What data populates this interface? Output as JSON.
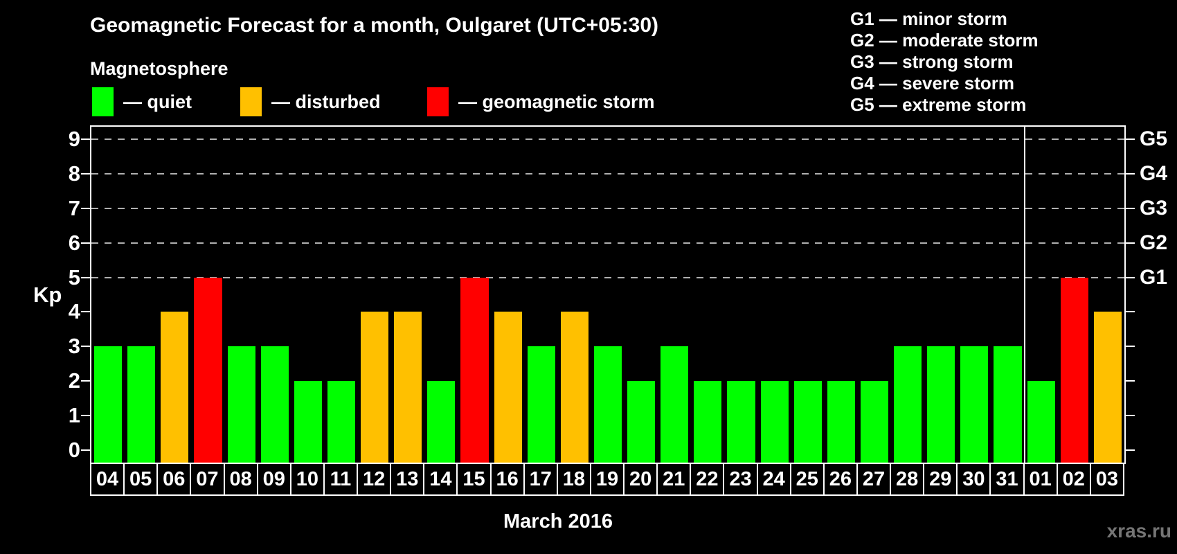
{
  "title": "Geomagnetic Forecast for a month, Oulgaret (UTC+05:30)",
  "subtitle": "Magnetosphere",
  "legend": {
    "items": [
      {
        "key": "quiet",
        "label": "— quiet",
        "color": "#00ff00"
      },
      {
        "key": "disturbed",
        "label": "— disturbed",
        "color": "#ffc000"
      },
      {
        "key": "storm",
        "label": "— geomagnetic storm",
        "color": "#ff0000"
      }
    ]
  },
  "g_scale_legend": [
    "G1 — minor storm",
    "G2 — moderate storm",
    "G3 — strong storm",
    "G4 — severe storm",
    "G5 — extreme storm"
  ],
  "watermark": "xras.ru",
  "chart_data": {
    "type": "bar",
    "title": "Geomagnetic Forecast for a month, Oulgaret (UTC+05:30)",
    "xlabel": "March 2016",
    "ylabel": "Kp",
    "ylim": [
      0,
      9
    ],
    "yticks": [
      0,
      1,
      2,
      3,
      4,
      5,
      6,
      7,
      8,
      9
    ],
    "gridlines_at_kp": [
      5,
      6,
      7,
      8,
      9
    ],
    "grid": "dashed",
    "legend_position": "top-left",
    "right_axis": [
      {
        "kp": 5,
        "label": "G1"
      },
      {
        "kp": 6,
        "label": "G2"
      },
      {
        "kp": 7,
        "label": "G3"
      },
      {
        "kp": 8,
        "label": "G4"
      },
      {
        "kp": 9,
        "label": "G5"
      }
    ],
    "categories": [
      "04",
      "05",
      "06",
      "07",
      "08",
      "09",
      "10",
      "11",
      "12",
      "13",
      "14",
      "15",
      "16",
      "17",
      "18",
      "19",
      "20",
      "21",
      "22",
      "23",
      "24",
      "25",
      "26",
      "27",
      "28",
      "29",
      "30",
      "31",
      "01",
      "02",
      "03"
    ],
    "values": [
      3,
      3,
      4,
      5,
      3,
      3,
      2,
      2,
      4,
      4,
      2,
      5,
      4,
      3,
      4,
      3,
      2,
      3,
      2,
      2,
      2,
      2,
      2,
      2,
      3,
      3,
      3,
      3,
      2,
      5,
      4
    ],
    "statuses": [
      "quiet",
      "quiet",
      "disturbed",
      "storm",
      "quiet",
      "quiet",
      "quiet",
      "quiet",
      "disturbed",
      "disturbed",
      "quiet",
      "storm",
      "disturbed",
      "quiet",
      "disturbed",
      "quiet",
      "quiet",
      "quiet",
      "quiet",
      "quiet",
      "quiet",
      "quiet",
      "quiet",
      "quiet",
      "quiet",
      "quiet",
      "quiet",
      "quiet",
      "quiet",
      "storm",
      "disturbed"
    ],
    "status_colors": {
      "quiet": "#00ff00",
      "disturbed": "#ffc000",
      "storm": "#ff0000"
    },
    "month_separator_after_index": 27
  }
}
